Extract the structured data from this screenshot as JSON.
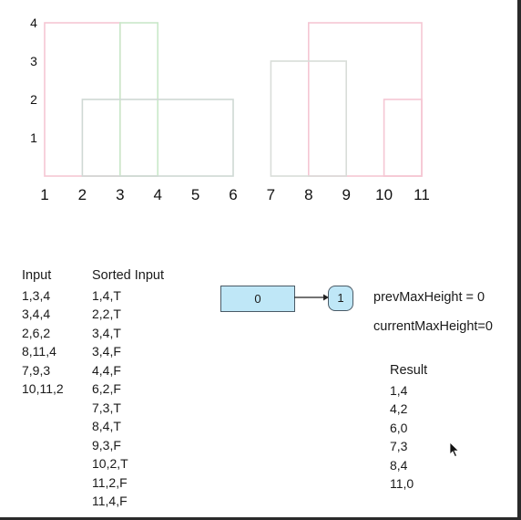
{
  "chart_data": {
    "type": "rectangles",
    "title": "",
    "x_ticks": [
      "1",
      "2",
      "3",
      "4",
      "5",
      "6",
      "7",
      "8",
      "9",
      "10",
      "11"
    ],
    "y_ticks": [
      "1",
      "2",
      "3",
      "4"
    ],
    "xlim": [
      1,
      11
    ],
    "ylim": [
      0,
      4
    ],
    "buildings": [
      {
        "left": 1,
        "right": 3,
        "height": 4,
        "color": "#f5c6d3"
      },
      {
        "left": 3,
        "right": 4,
        "height": 4,
        "color": "#c9e8c9"
      },
      {
        "left": 2,
        "right": 6,
        "height": 2,
        "color": "#cfd8d4"
      },
      {
        "left": 8,
        "right": 11,
        "height": 4,
        "color": "#f5c6d3"
      },
      {
        "left": 7,
        "right": 9,
        "height": 3,
        "color": "#d9ddd9"
      },
      {
        "left": 10,
        "right": 11,
        "height": 2,
        "color": "#f5c6d3"
      }
    ]
  },
  "input": {
    "header": "Input",
    "rows": [
      "1,3,4",
      "3,4,4",
      "2,6,2",
      "8,11,4",
      "7,9,3",
      "10,11,2"
    ]
  },
  "sorted": {
    "header": "Sorted Input",
    "rows": [
      "1,4,T",
      "2,2,T",
      "3,4,T",
      "3,4,F",
      "4,4,F",
      "6,2,F",
      "7,3,T",
      "8,4,T",
      "9,3,F",
      "10,2,T",
      "11,2,F",
      "11,4,F"
    ]
  },
  "heap": {
    "box_value": "0",
    "node_value": "1",
    "box_color": "#bfe7f7"
  },
  "vars": {
    "prev": "prevMaxHeight = 0",
    "curr": "currentMaxHeight=0"
  },
  "result": {
    "header": "Result",
    "rows": [
      "1,4",
      "4,2",
      "6,0",
      "7,3",
      "8,4",
      "11,0"
    ]
  },
  "icons": {
    "cursor": "mouse-pointer-icon"
  }
}
